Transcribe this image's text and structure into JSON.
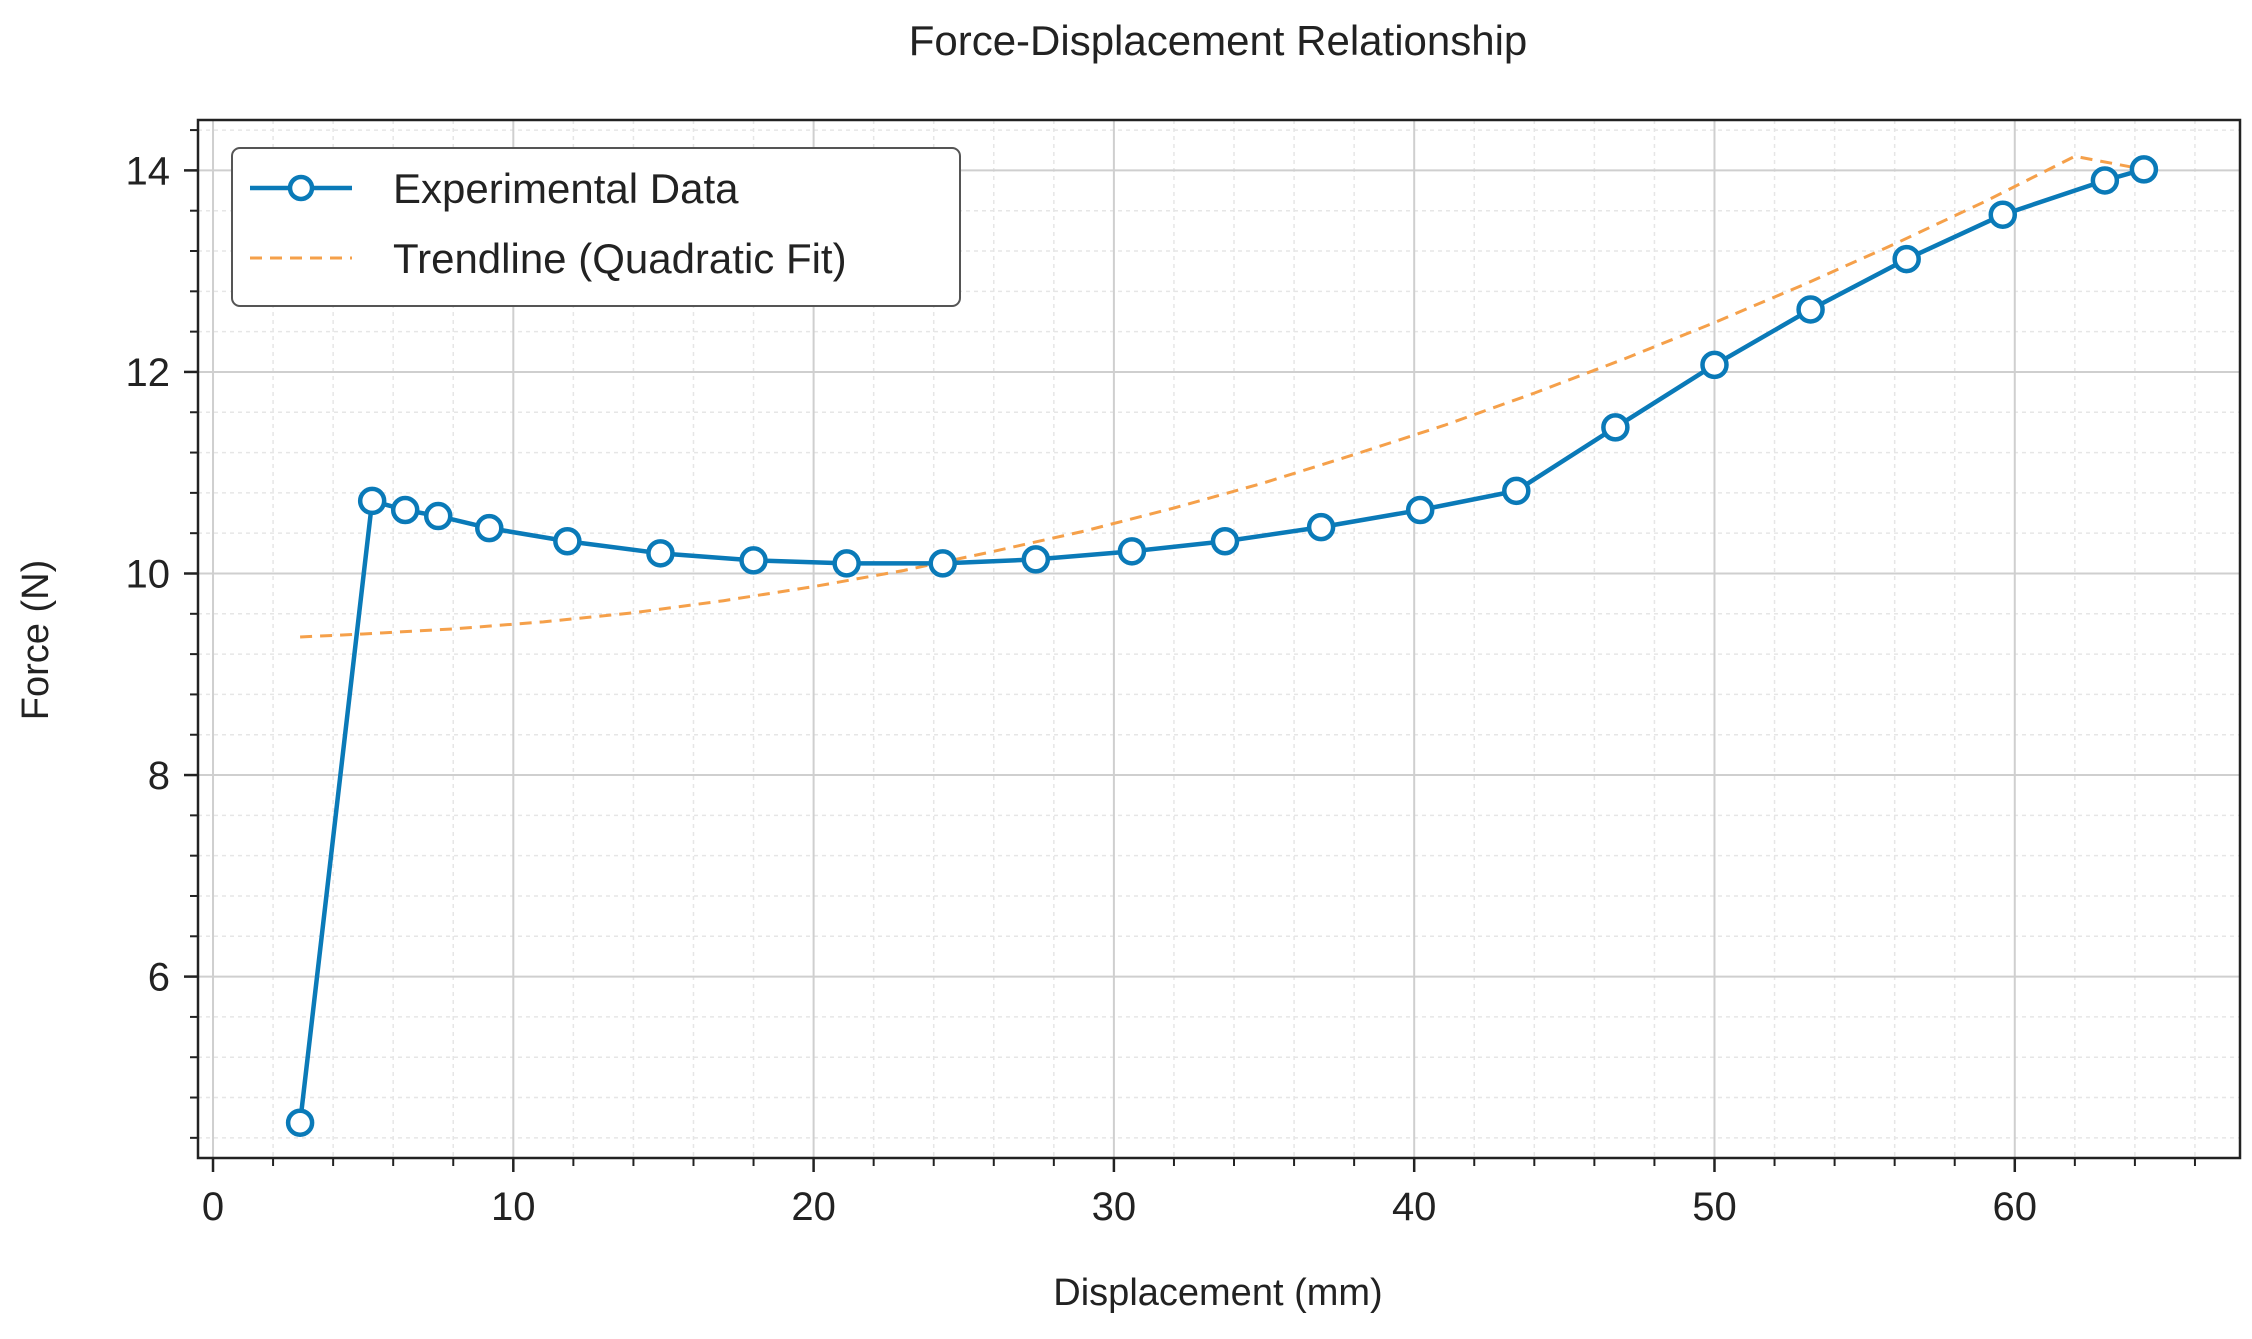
{
  "chart_data": {
    "type": "line",
    "title": "Force-Displacement Relationship",
    "xlabel": "Displacement (mm)",
    "ylabel": "Force (N)",
    "xlim": [
      -0.5,
      67.5
    ],
    "ylim": [
      4.2,
      14.5
    ],
    "xticks": [
      0,
      10,
      20,
      30,
      40,
      50,
      60
    ],
    "yticks": [
      6,
      8,
      10,
      12,
      14
    ],
    "xtick_labels": [
      "0",
      "10",
      "20",
      "30",
      "40",
      "50",
      "60"
    ],
    "ytick_labels": [
      "6",
      "8",
      "10",
      "12",
      "14"
    ],
    "grid": true,
    "legend_position": "top-left",
    "series": [
      {
        "name": "Experimental Data",
        "style": "solid line with open circle markers",
        "color": "#0a7ab8",
        "x": [
          2.9,
          5.3,
          6.4,
          7.5,
          9.2,
          11.8,
          14.9,
          18.0,
          21.1,
          24.3,
          27.4,
          30.6,
          33.7,
          36.9,
          40.2,
          43.4,
          46.7,
          50.0,
          53.2,
          56.4,
          59.6,
          63.0,
          64.3
        ],
        "y": [
          4.55,
          10.72,
          10.63,
          10.57,
          10.45,
          10.32,
          10.2,
          10.13,
          10.1,
          10.1,
          10.14,
          10.22,
          10.32,
          10.46,
          10.63,
          10.82,
          11.45,
          12.07,
          12.62,
          13.12,
          13.56,
          13.9,
          14.01
        ]
      },
      {
        "name": "Trendline (Quadratic Fit)",
        "style": "dashed line",
        "color": "#f5a04a",
        "x": [
          2.9,
          5,
          8,
          11,
          14,
          17,
          20,
          23,
          26,
          29,
          32,
          35,
          38,
          41,
          44,
          47,
          50,
          53,
          56,
          59,
          62,
          64.3
        ],
        "y": [
          9.37,
          9.4,
          9.45,
          9.52,
          9.61,
          9.73,
          9.87,
          10.03,
          10.22,
          10.42,
          10.65,
          10.9,
          11.18,
          11.47,
          11.79,
          12.13,
          12.49,
          12.87,
          13.27,
          13.69,
          14.14,
          14.01
        ]
      }
    ]
  }
}
